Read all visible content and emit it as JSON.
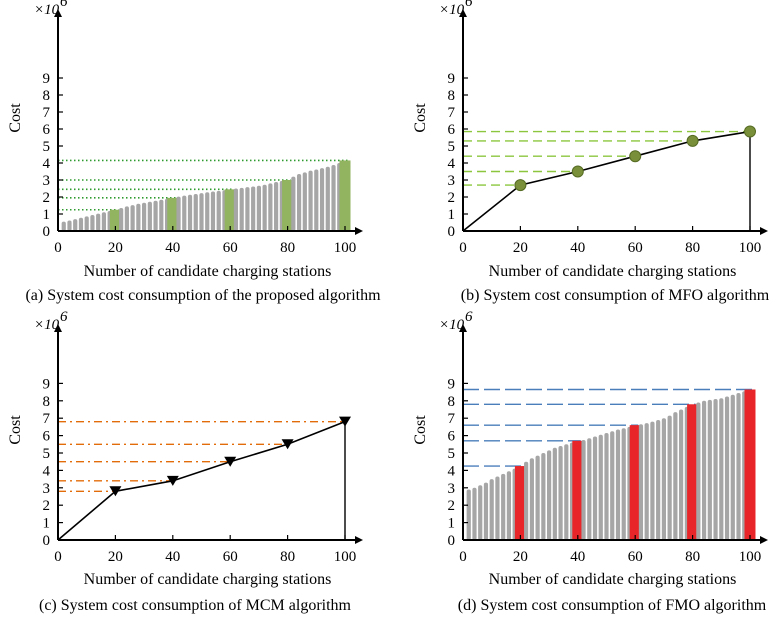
{
  "chart_data": [
    {
      "type": "bar",
      "caption": "(a) System cost consumption of the proposed algorithm",
      "xlabel": "Number of candidate charging stations",
      "ylabel": "Cost",
      "multiplier": "×10",
      "multiplier_exp": "6",
      "xlim": [
        0,
        100
      ],
      "ylim": [
        0,
        10
      ],
      "xticks": [
        "0",
        "20",
        "40",
        "60",
        "80",
        "100"
      ],
      "yticks": [
        "0",
        "1",
        "2",
        "3",
        "4",
        "5",
        "6",
        "7",
        "8",
        "9"
      ],
      "bar_style": "gray-bars-highlighted",
      "bar_color": "#a6a6a6",
      "highlight_color": "#92b35f",
      "ref_line_style": "dotted",
      "ref_line_color": "#2e9a2e",
      "x": [
        2,
        4,
        6,
        8,
        10,
        12,
        14,
        16,
        18,
        20,
        22,
        24,
        26,
        28,
        30,
        32,
        34,
        36,
        38,
        40,
        42,
        44,
        46,
        48,
        50,
        52,
        54,
        56,
        58,
        60,
        62,
        64,
        66,
        68,
        70,
        72,
        74,
        76,
        78,
        80,
        82,
        84,
        86,
        88,
        90,
        92,
        94,
        96,
        98,
        100
      ],
      "values": [
        0.55,
        0.62,
        0.7,
        0.78,
        0.86,
        0.94,
        1.02,
        1.1,
        1.18,
        1.25,
        1.35,
        1.45,
        1.52,
        1.6,
        1.66,
        1.72,
        1.78,
        1.84,
        1.9,
        1.95,
        2.02,
        2.08,
        2.13,
        2.18,
        2.23,
        2.28,
        2.32,
        2.36,
        2.4,
        2.45,
        2.5,
        2.54,
        2.58,
        2.62,
        2.66,
        2.72,
        2.8,
        2.88,
        2.95,
        3.0,
        3.2,
        3.35,
        3.45,
        3.55,
        3.62,
        3.7,
        3.78,
        3.88,
        4.0,
        4.15
      ],
      "highlight_x": [
        20,
        40,
        60,
        80,
        100
      ],
      "highlight_values": [
        1.25,
        1.95,
        2.45,
        3.0,
        4.15
      ]
    },
    {
      "type": "line",
      "caption": "(b) System cost consumption of MFO algorithm",
      "xlabel": "Number of candidate charging stations",
      "ylabel": "Cost",
      "multiplier": "×10",
      "multiplier_exp": "6",
      "xlim": [
        0,
        100
      ],
      "ylim": [
        0,
        10
      ],
      "xticks": [
        "0",
        "20",
        "40",
        "60",
        "80",
        "100"
      ],
      "yticks": [
        "0",
        "1",
        "2",
        "3",
        "4",
        "5",
        "6",
        "7",
        "8",
        "9"
      ],
      "marker": "circle",
      "marker_color": "#7a8f3a",
      "ref_line_style": "dashed",
      "ref_line_color": "#8cc63f",
      "x": [
        0,
        20,
        40,
        60,
        80,
        100
      ],
      "values": [
        0,
        2.7,
        3.5,
        4.4,
        5.3,
        5.85
      ],
      "drop_to_axis_at": 100
    },
    {
      "type": "line",
      "caption": "(c) System cost consumption of MCM algorithm",
      "xlabel": "Number of candidate charging stations",
      "ylabel": "Cost",
      "multiplier": "×10",
      "multiplier_exp": "6",
      "xlim": [
        0,
        100
      ],
      "ylim": [
        0,
        10
      ],
      "xticks": [
        "0",
        "20",
        "40",
        "60",
        "80",
        "100"
      ],
      "yticks": [
        "0",
        "1",
        "2",
        "3",
        "4",
        "5",
        "6",
        "7",
        "8",
        "9"
      ],
      "marker": "triangle-down",
      "marker_color": "#000000",
      "ref_line_style": "dash-dot",
      "ref_line_color": "#e36c0a",
      "x": [
        0,
        20,
        40,
        60,
        80,
        100
      ],
      "values": [
        0,
        2.8,
        3.4,
        4.5,
        5.5,
        6.8
      ],
      "drop_to_axis_at": 100
    },
    {
      "type": "bar",
      "caption": "(d) System cost consumption of FMO algorithm",
      "xlabel": "Number of candidate charging stations",
      "ylabel": "Cost",
      "multiplier": "×10",
      "multiplier_exp": "6",
      "xlim": [
        0,
        100
      ],
      "ylim": [
        0,
        10
      ],
      "xticks": [
        "0",
        "20",
        "40",
        "60",
        "80",
        "100"
      ],
      "yticks": [
        "0",
        "1",
        "2",
        "3",
        "4",
        "5",
        "6",
        "7",
        "8",
        "9"
      ],
      "bar_style": "gray-bars-highlighted",
      "bar_color": "#a6a6a6",
      "highlight_color": "#e8262a",
      "ref_line_style": "long-dash",
      "ref_line_color": "#4a7ebb",
      "x": [
        2,
        4,
        6,
        8,
        10,
        12,
        14,
        16,
        18,
        20,
        22,
        24,
        26,
        28,
        30,
        32,
        34,
        36,
        38,
        40,
        42,
        44,
        46,
        48,
        50,
        52,
        54,
        56,
        58,
        60,
        62,
        64,
        66,
        68,
        70,
        72,
        74,
        76,
        78,
        80,
        82,
        84,
        86,
        88,
        90,
        92,
        94,
        96,
        98,
        100
      ],
      "values": [
        2.9,
        3.0,
        3.15,
        3.3,
        3.5,
        3.65,
        3.8,
        3.95,
        4.1,
        4.25,
        4.5,
        4.7,
        4.85,
        5.0,
        5.15,
        5.3,
        5.4,
        5.5,
        5.6,
        5.7,
        5.75,
        5.85,
        5.95,
        6.05,
        6.15,
        6.25,
        6.35,
        6.42,
        6.5,
        6.6,
        6.65,
        6.72,
        6.8,
        6.9,
        7.0,
        7.15,
        7.35,
        7.5,
        7.65,
        7.8,
        7.9,
        8.0,
        8.05,
        8.1,
        8.15,
        8.25,
        8.35,
        8.45,
        8.55,
        8.65
      ],
      "highlight_x": [
        20,
        40,
        60,
        80,
        100
      ],
      "highlight_values": [
        4.25,
        5.7,
        6.6,
        7.8,
        8.65
      ]
    }
  ]
}
